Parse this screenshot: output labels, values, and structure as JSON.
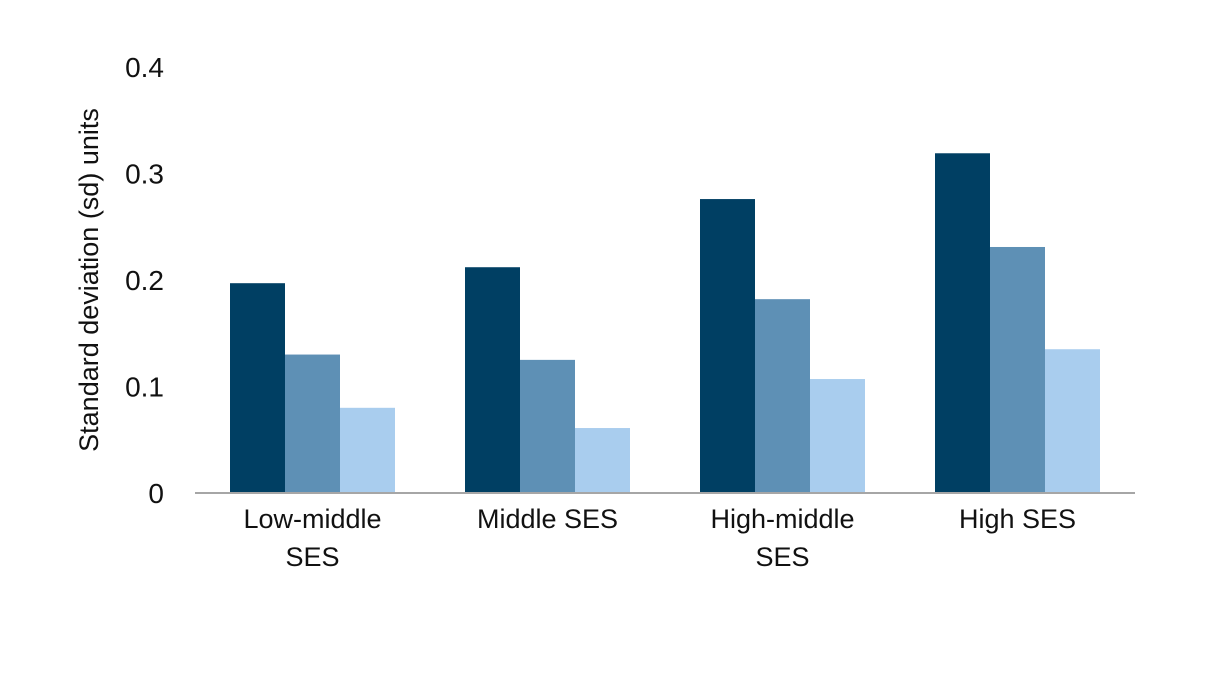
{
  "chart_data": {
    "type": "bar",
    "title": "",
    "xlabel": "",
    "ylabel": "Standard deviation (sd) units",
    "ylim": [
      0,
      0.4
    ],
    "yticks": [
      "0",
      "0.1",
      "0.2",
      "0.3",
      "0.4"
    ],
    "ytick_values": [
      0,
      0.1,
      0.2,
      0.3,
      0.4
    ],
    "grid": false,
    "legend": "none",
    "categories": [
      {
        "lines": [
          "Low-middle",
          "SES"
        ]
      },
      {
        "lines": [
          "Middle SES"
        ]
      },
      {
        "lines": [
          "High-middle",
          "SES"
        ]
      },
      {
        "lines": [
          "High SES"
        ]
      }
    ],
    "series": [
      {
        "color": "#003f63",
        "values": [
          0.197,
          0.212,
          0.276,
          0.319
        ]
      },
      {
        "color": "#5e90b5",
        "values": [
          0.13,
          0.125,
          0.182,
          0.231
        ]
      },
      {
        "color": "#a9cdee",
        "values": [
          0.08,
          0.061,
          0.107,
          0.135
        ]
      }
    ],
    "axis_color": "#a6a6a6"
  }
}
